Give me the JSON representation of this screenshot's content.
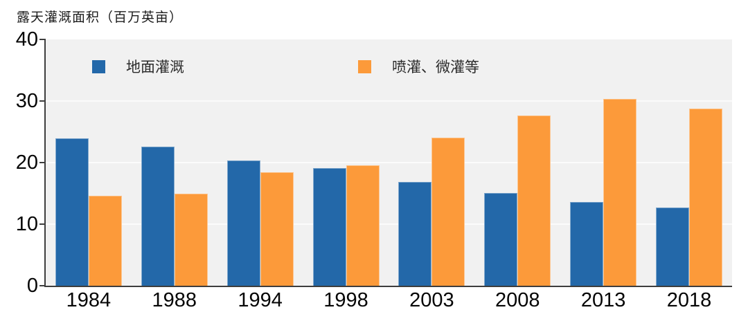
{
  "title": "露天灌溉面积（百万英亩）",
  "colors": {
    "series_surface": "#2368a9",
    "series_sprinkler": "#fc9a3a",
    "plot_background": "#f1f1f1",
    "gridline": "#fbfbfb",
    "axis": "#3d3d3d"
  },
  "chart_data": {
    "type": "bar",
    "title": "露天灌溉面积（百万英亩）",
    "categories": [
      "1984",
      "1988",
      "1994",
      "1998",
      "2003",
      "2008",
      "2013",
      "2018"
    ],
    "series": [
      {
        "name": "地面灌溉",
        "color": "#2368a9",
        "values": [
          23.9,
          22.6,
          20.3,
          19.1,
          16.9,
          15.1,
          13.6,
          12.7
        ]
      },
      {
        "name": "喷灌、微灌等",
        "color": "#fc9a3a",
        "values": [
          14.6,
          15.0,
          18.4,
          19.5,
          24.1,
          27.6,
          30.3,
          28.8
        ]
      }
    ],
    "xlabel": "",
    "ylabel": "露天灌溉面积（百万英亩）",
    "ylim": [
      0,
      40
    ],
    "yticks": [
      0,
      10,
      20,
      30,
      40
    ],
    "grid": true,
    "legend_position": "top-inside"
  }
}
